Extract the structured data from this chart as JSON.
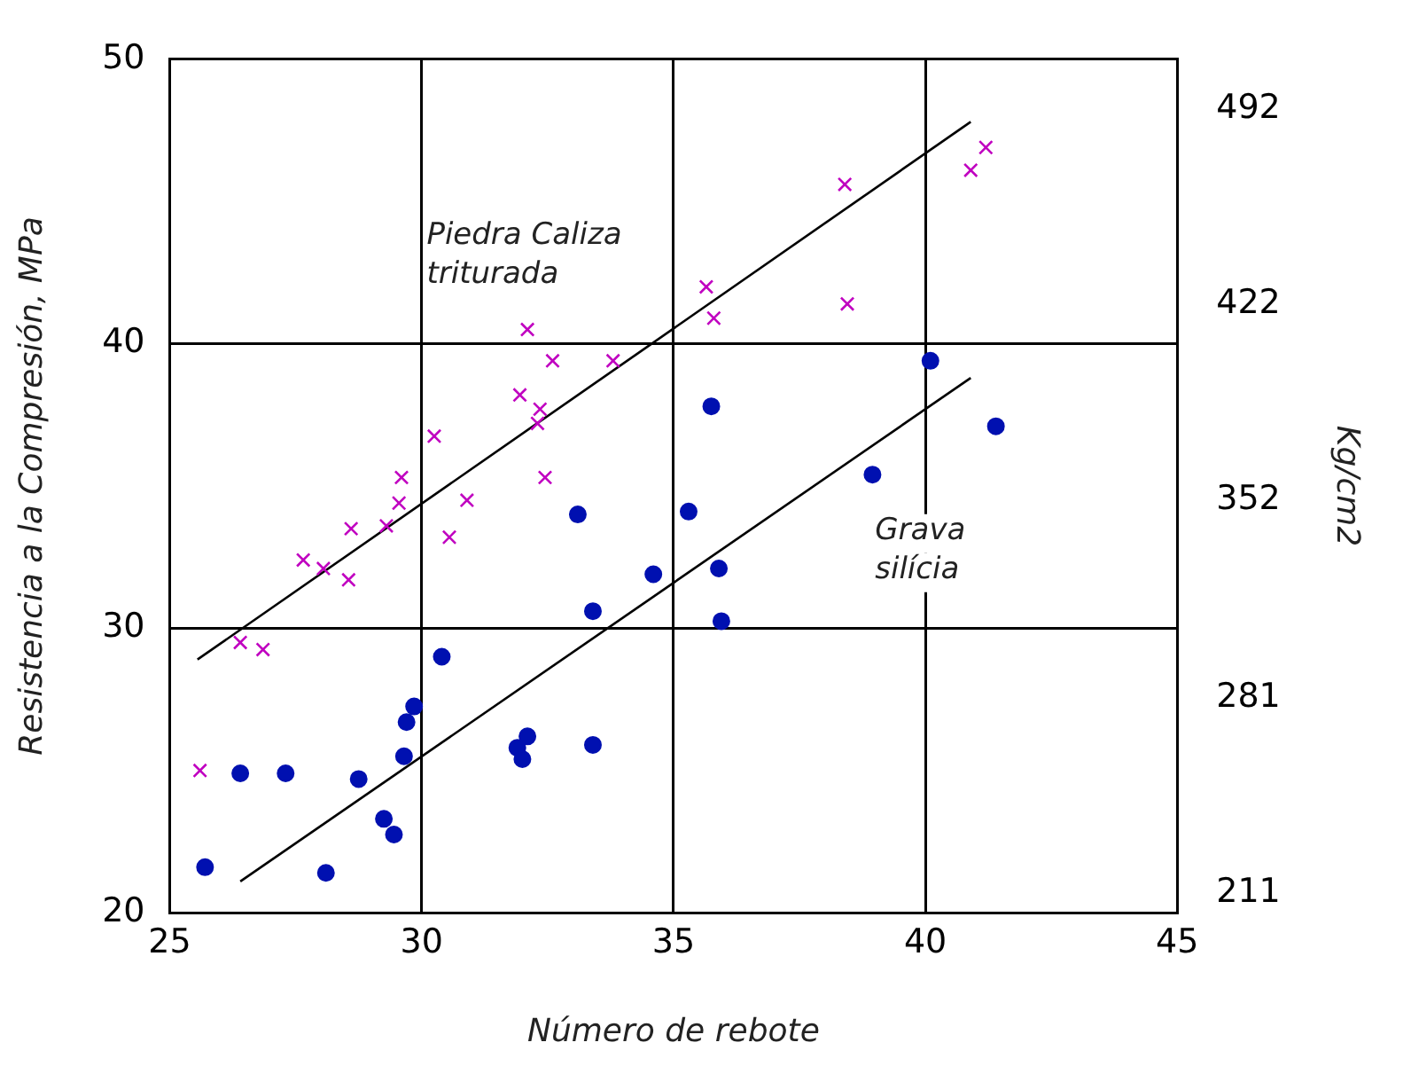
{
  "chart_data": {
    "type": "scatter",
    "xlabel": "Número de rebote",
    "ylabel": "Resistencia a la Compresión, MPa",
    "y2label": "Kg/cm2",
    "xlim": [
      25,
      45
    ],
    "xticks": [
      25,
      30,
      35,
      40,
      45
    ],
    "ylim": [
      20,
      50
    ],
    "yticks": [
      20,
      30,
      40,
      50
    ],
    "y2lim": [
      204,
      510
    ],
    "y2ticks": [
      211,
      281,
      352,
      422,
      492
    ],
    "grid": true,
    "series": [
      {
        "name": "Piedra Caliza triturada",
        "type": "scatter",
        "marker": "cross",
        "color": "#c000c0",
        "x": [
          25.6,
          26.4,
          26.85,
          27.65,
          28.05,
          28.55,
          28.6,
          29.3,
          29.55,
          29.6,
          30.25,
          30.55,
          30.9,
          31.95,
          32.1,
          32.3,
          32.35,
          32.45,
          32.6,
          33.8,
          35.65,
          35.8,
          38.45,
          38.4,
          40.9,
          41.2
        ],
        "values": [
          25.0,
          29.5,
          29.25,
          32.4,
          32.1,
          31.7,
          33.5,
          33.6,
          34.4,
          35.3,
          36.75,
          33.2,
          34.5,
          38.2,
          40.5,
          37.2,
          37.7,
          35.3,
          39.4,
          39.4,
          42.0,
          40.9,
          41.4,
          45.6,
          46.1,
          46.9
        ]
      },
      {
        "name": "Grava silícia",
        "type": "scatter",
        "marker": "circle",
        "color": "#0010b0",
        "x": [
          25.7,
          26.4,
          27.3,
          28.1,
          28.75,
          29.25,
          29.45,
          29.65,
          29.7,
          29.85,
          30.4,
          31.9,
          32.1,
          32.0,
          33.4,
          33.4,
          33.1,
          34.6,
          35.3,
          35.75,
          35.9,
          35.95,
          38.95,
          40.1,
          41.4
        ],
        "values": [
          21.6,
          24.9,
          24.9,
          21.4,
          24.7,
          23.3,
          22.75,
          25.5,
          26.7,
          27.25,
          29.0,
          25.8,
          26.2,
          25.4,
          25.9,
          30.6,
          34.0,
          31.9,
          34.1,
          37.8,
          32.1,
          30.25,
          35.4,
          39.4,
          37.1
        ]
      },
      {
        "type": "line",
        "color": "#000000",
        "x": [
          25.55,
          40.9
        ],
        "values": [
          28.9,
          47.8
        ]
      },
      {
        "type": "line",
        "color": "#000000",
        "x": [
          26.4,
          40.9
        ],
        "values": [
          21.1,
          38.8
        ]
      }
    ]
  }
}
